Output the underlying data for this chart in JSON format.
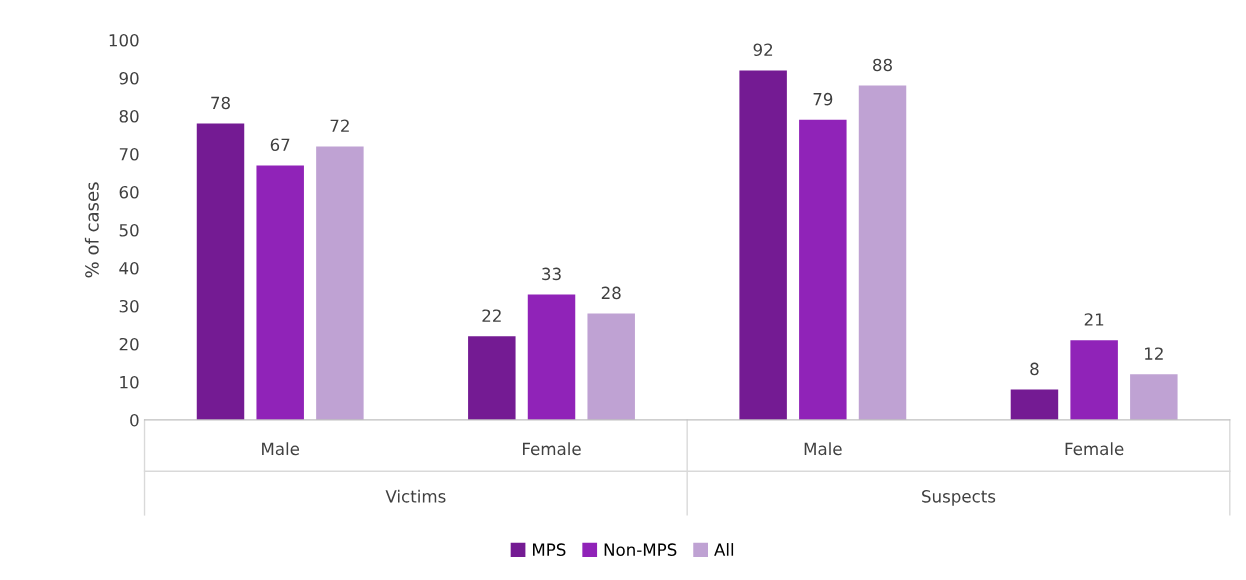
{
  "chart_data": {
    "type": "bar",
    "ylabel": "% of cases",
    "categories": [
      "Male",
      "Female",
      "Male",
      "Female"
    ],
    "annotations": [
      "Victims",
      "Suspects"
    ],
    "series": [
      {
        "name": "MPS",
        "color": "#741b93",
        "values": [
          78,
          22,
          92,
          8
        ]
      },
      {
        "name": "Non-MPS",
        "color": "#9023b8",
        "values": [
          67,
          33,
          79,
          21
        ]
      },
      {
        "name": "All",
        "color": "#bfa2d3",
        "values": [
          72,
          28,
          88,
          12
        ]
      }
    ],
    "ylim": [
      0,
      100
    ],
    "yticks": [
      0,
      10,
      20,
      30,
      40,
      50,
      60,
      70,
      80,
      90,
      100
    ],
    "data_labels": true,
    "grid": false,
    "legend": "bottom"
  }
}
